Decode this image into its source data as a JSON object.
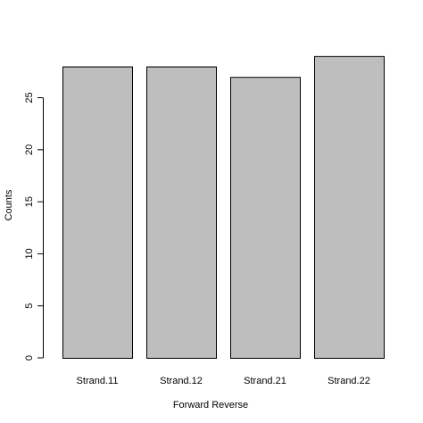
{
  "chart_data": {
    "type": "bar",
    "title": "",
    "xlabel": "Forward Reverse",
    "ylabel": "Counts",
    "categories": [
      "Strand.11",
      "Strand.12",
      "Strand.21",
      "Strand.22"
    ],
    "values": [
      28,
      28,
      27,
      29
    ],
    "ylim": [
      0,
      29
    ],
    "yticks": [
      0,
      5,
      10,
      15,
      20,
      25
    ],
    "grid": false,
    "legend": "none",
    "bar_color": "#bebebe",
    "border_color": "#000000"
  }
}
